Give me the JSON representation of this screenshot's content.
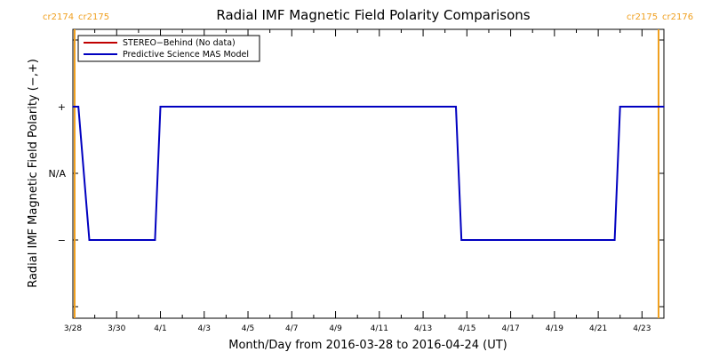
{
  "chart_data": {
    "type": "line",
    "title": "Radial IMF Magnetic Field Polarity Comparisons",
    "xlabel": "Month/Day from 2016-03-28 to 2016-04-24 (UT)",
    "ylabel": "Radial IMF Magnetic Field Polarity (−,+)",
    "xlim": [
      "2016-03-28",
      "2016-04-24"
    ],
    "x_tick_labels": [
      "3/28",
      "3/30",
      "4/1",
      "4/3",
      "4/5",
      "4/7",
      "4/9",
      "4/11",
      "4/13",
      "4/15",
      "4/17",
      "4/19",
      "4/21",
      "4/23"
    ],
    "y_tick_labels": [
      "+",
      "N/A",
      "−"
    ],
    "carrington_markers": [
      {
        "x": "2016-03-28",
        "left_label": "cr2174",
        "right_label": "cr2175"
      },
      {
        "x": "2016-04-24",
        "left_label": "cr2175",
        "right_label": "cr2176"
      }
    ],
    "marker_color": "#f0a020",
    "legend": {
      "position": "top-left",
      "entries": [
        {
          "label": "STEREO−Behind (No data)",
          "color": "#c00000"
        },
        {
          "label": "Predictive Science MAS Model",
          "color": "#0000c0"
        }
      ]
    },
    "series": [
      {
        "name": "Predictive Science MAS Model",
        "color": "#0000c0",
        "points": [
          [
            "2016-03-28 00:00",
            "+"
          ],
          [
            "2016-03-28 06:00",
            "+"
          ],
          [
            "2016-03-28 18:00",
            "−"
          ],
          [
            "2016-03-31 18:00",
            "−"
          ],
          [
            "2016-04-01 00:00",
            "+"
          ],
          [
            "2016-04-14 12:00",
            "+"
          ],
          [
            "2016-04-14 18:00",
            "−"
          ],
          [
            "2016-04-21 18:00",
            "−"
          ],
          [
            "2016-04-22 00:00",
            "+"
          ],
          [
            "2016-04-24 00:00",
            "+"
          ]
        ]
      }
    ]
  }
}
